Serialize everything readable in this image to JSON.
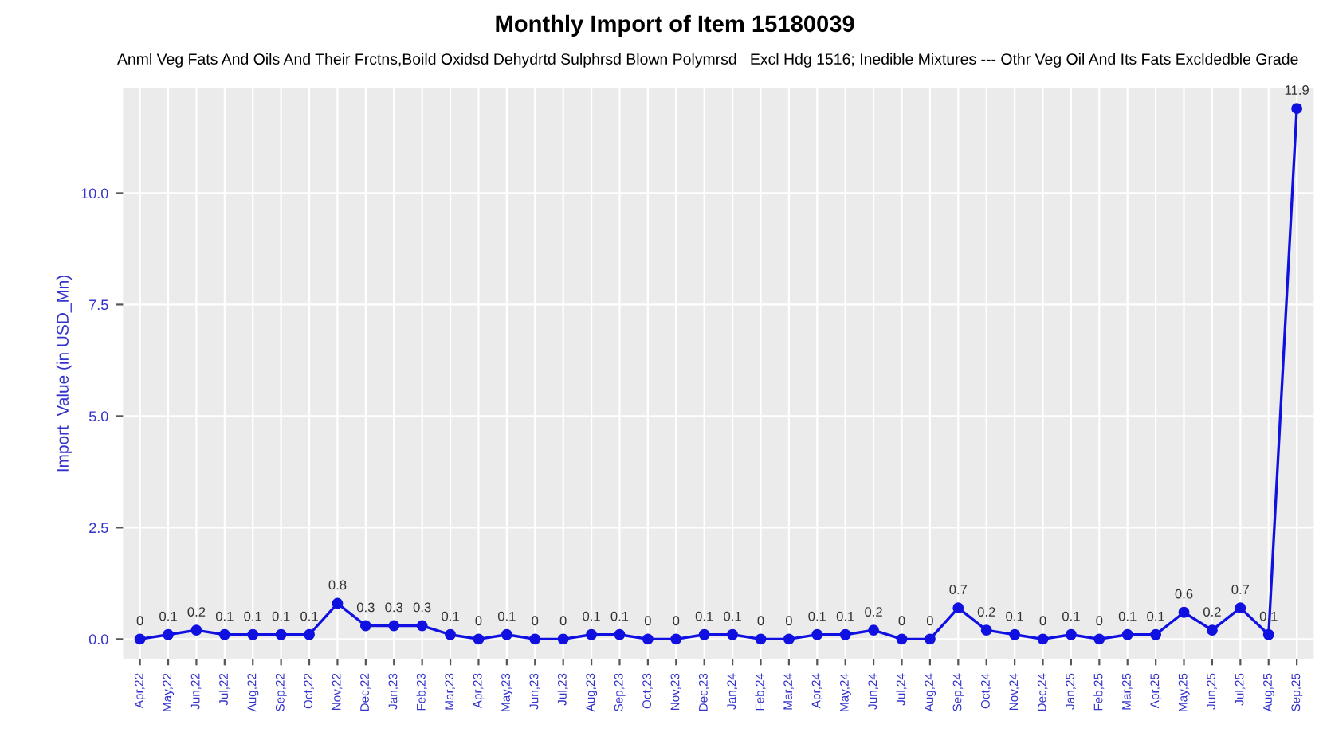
{
  "chart_data": {
    "type": "line",
    "title": "Monthly Import of Item 15180039",
    "subtitle": "Anml Veg Fats And Oils And Their Frctns,Boild Oxidsd Dehydrtd Sulphrsd Blown Polymrsd   Excl Hdg 1516; Inedible Mixtures --- Othr Veg Oil And Its Fats Excldedble Grade",
    "ylabel": "Import  Value (in USD_Mn)",
    "categories": [
      "Apr,22",
      "May,22",
      "Jun,22",
      "Jul,22",
      "Aug,22",
      "Sep,22",
      "Oct,22",
      "Nov,22",
      "Dec,22",
      "Jan,23",
      "Feb,23",
      "Mar,23",
      "Apr,23",
      "May,23",
      "Jun,23",
      "Jul,23",
      "Aug,23",
      "Sep,23",
      "Oct,23",
      "Nov,23",
      "Dec,23",
      "Jan,24",
      "Feb,24",
      "Mar,24",
      "Apr,24",
      "May,24",
      "Jun,24",
      "Jul,24",
      "Aug,24",
      "Sep,24",
      "Oct,24",
      "Nov,24",
      "Dec,24",
      "Jan,25",
      "Feb,25",
      "Mar,25",
      "Apr,25",
      "May,25",
      "Jun,25",
      "Jul,25",
      "Aug,25",
      "Sep,25"
    ],
    "series": [
      {
        "color": "#1010e0",
        "values": [
          0,
          0.1,
          0.2,
          0.1,
          0.1,
          0.1,
          0.1,
          0.8,
          0.3,
          0.3,
          0.3,
          0.1,
          0,
          0.1,
          0,
          0,
          0.1,
          0.1,
          0,
          0,
          0.1,
          0.1,
          0,
          0,
          0.1,
          0.1,
          0.2,
          0,
          0,
          0.7,
          0.2,
          0.1,
          0,
          0.1,
          0,
          0.1,
          0.1,
          0.6,
          0.2,
          0.7,
          0.1,
          11.9
        ]
      }
    ],
    "ylim": [
      -0.44,
      12.35
    ],
    "yticks": [
      {
        "value": 0,
        "label": "0.0"
      },
      {
        "value": 2.5,
        "label": "2.5"
      },
      {
        "value": 5,
        "label": "5.0"
      },
      {
        "value": 7.5,
        "label": "7.5"
      },
      {
        "value": 10,
        "label": "10.0"
      }
    ],
    "grid": true,
    "marker": "circle",
    "line_style": "solid",
    "data_labels": true
  }
}
